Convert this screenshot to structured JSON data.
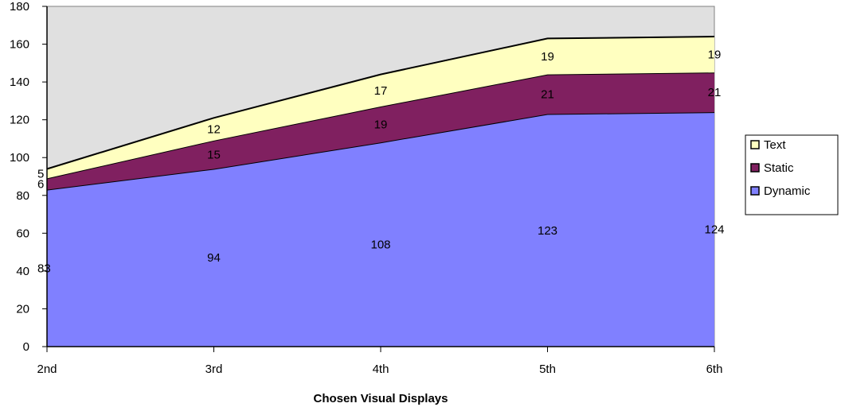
{
  "chart_data": {
    "type": "area",
    "stacked": true,
    "categories": [
      "2nd",
      "3rd",
      "4th",
      "5th",
      "6th"
    ],
    "series": [
      {
        "name": "Dynamic",
        "values": [
          83,
          94,
          108,
          123,
          124
        ],
        "color": "#8080ff"
      },
      {
        "name": "Static",
        "values": [
          6,
          15,
          19,
          21,
          21
        ],
        "color": "#802060"
      },
      {
        "name": "Text",
        "values": [
          5,
          12,
          17,
          19,
          19
        ],
        "color": "#ffffc0"
      }
    ],
    "title": "",
    "xlabel": "Chosen Visual Displays",
    "ylabel": "",
    "ylim": [
      0,
      180
    ],
    "yticks": [
      "0",
      "20",
      "40",
      "60",
      "80",
      "100",
      "120",
      "140",
      "160",
      "180"
    ],
    "plot_background": "#e0e0e0",
    "grid": false,
    "legend_position": "right",
    "legend_order": [
      "Text",
      "Static",
      "Dynamic"
    ]
  }
}
